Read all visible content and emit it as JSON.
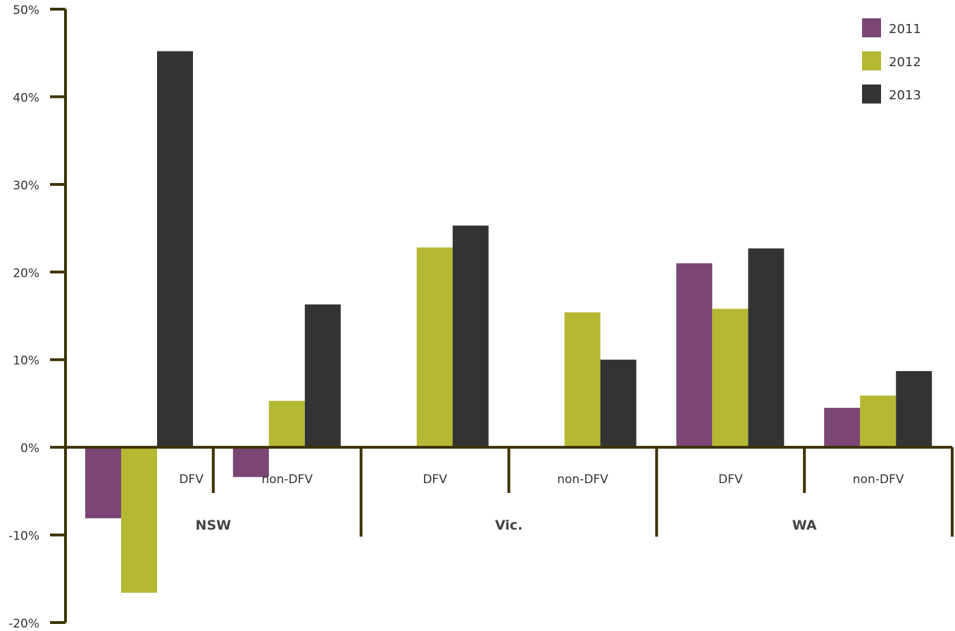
{
  "chart_data": {
    "type": "bar",
    "title": "",
    "xlabel": "",
    "ylabel": "",
    "ylim": [
      -20,
      50
    ],
    "y_ticks": [
      50,
      40,
      30,
      20,
      10,
      0,
      -10,
      -20
    ],
    "y_tick_labels": [
      "50%",
      "40%",
      "30%",
      "20%",
      "10%",
      "0%",
      "-10%",
      "-20%"
    ],
    "grid": false,
    "legend_position": "top-right",
    "groups": [
      "NSW",
      "Vic.",
      "WA"
    ],
    "categories": [
      "DFV",
      "non-DFV",
      "DFV",
      "non-DFV",
      "DFV",
      "non-DFV"
    ],
    "category_group": [
      0,
      0,
      1,
      1,
      2,
      2
    ],
    "series": [
      {
        "name": "2011",
        "color": "#7b4675",
        "values": [
          -8.1,
          -3.4,
          null,
          null,
          21.0,
          4.5
        ]
      },
      {
        "name": "2012",
        "color": "#b5b833",
        "values": [
          -16.6,
          5.3,
          22.8,
          15.4,
          15.8,
          5.9
        ]
      },
      {
        "name": "2013",
        "color": "#333333",
        "values": [
          45.2,
          16.3,
          25.3,
          10.0,
          22.7,
          8.7
        ]
      }
    ],
    "axis_color": "#3d3300"
  }
}
